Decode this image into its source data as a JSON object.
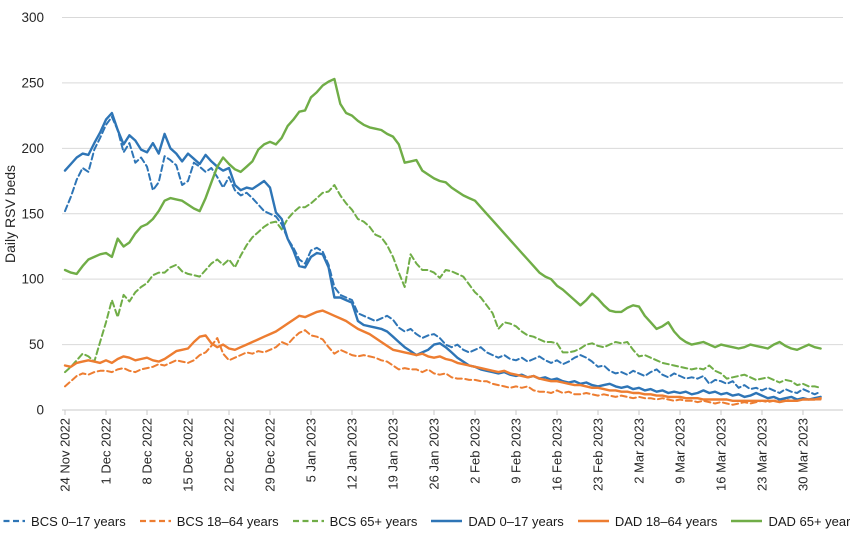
{
  "figure_name": "Daily RSV beds time series",
  "chart_data": {
    "type": "line",
    "title": "",
    "xlabel": "",
    "ylabel": "Daily RSV beds",
    "ylim": [
      0,
      300
    ],
    "yticks": [
      0,
      50,
      100,
      150,
      200,
      250,
      300
    ],
    "grid": "horizontal",
    "legend_position": "bottom",
    "tick_interval_days": 7,
    "x_tick_labels": [
      "24 Nov 2022",
      "1 Dec 2022",
      "8 Dec 2022",
      "15 Dec 2022",
      "22 Dec 2022",
      "29 Dec 2022",
      "5 Jan 2023",
      "12 Jan 2023",
      "19 Jan 2023",
      "26 Jan 2023",
      "2 Feb 2023",
      "9 Feb 2023",
      "16 Feb 2023",
      "23 Feb 2023",
      "2 Mar 2023",
      "9 Mar 2023",
      "16 Mar 2023",
      "23 Mar 2023",
      "30 Mar 2023"
    ],
    "colors": {
      "blue": "#2E75B6",
      "orange": "#ED7D31",
      "green": "#70AD47",
      "gridline": "#D9D9D9",
      "axis": "#C9C9C9",
      "text": "#262626"
    },
    "series": [
      {
        "name": "BCS 0–17 years",
        "style": "dashed",
        "color": "#2E75B6",
        "values": [
          152,
          163,
          176,
          185,
          182,
          199,
          208,
          218,
          224,
          214,
          197,
          204,
          189,
          193,
          186,
          168,
          174,
          194,
          191,
          187,
          172,
          175,
          189,
          186,
          182,
          185,
          178,
          170,
          178,
          168,
          164,
          166,
          162,
          157,
          152,
          150,
          148,
          142,
          131,
          124,
          115,
          112,
          122,
          124,
          121,
          111,
          94,
          88,
          86,
          84,
          74,
          72,
          70,
          68,
          70,
          72,
          69,
          63,
          60,
          62,
          58,
          55,
          57,
          58,
          55,
          50,
          48,
          50,
          46,
          44,
          46,
          48,
          44,
          42,
          40,
          42,
          39,
          38,
          40,
          37,
          39,
          41,
          38,
          36,
          38,
          35,
          37,
          40,
          42,
          40,
          37,
          33,
          34,
          30,
          28,
          29,
          27,
          30,
          28,
          26,
          29,
          31,
          27,
          25,
          28,
          26,
          24,
          25,
          24,
          26,
          20,
          23,
          22,
          20,
          22,
          17,
          19,
          16,
          17,
          15,
          17,
          15,
          13,
          16,
          14,
          13,
          16,
          14,
          12,
          14
        ]
      },
      {
        "name": "BCS 18–64 years",
        "style": "dashed",
        "color": "#ED7D31",
        "values": [
          18,
          22,
          26,
          28,
          27,
          29,
          30,
          30,
          29,
          31,
          32,
          30,
          29,
          31,
          32,
          33,
          35,
          34,
          36,
          38,
          37,
          36,
          38,
          42,
          44,
          49,
          55,
          43,
          38,
          40,
          42,
          44,
          43,
          45,
          44,
          46,
          48,
          52,
          50,
          55,
          59,
          61,
          57,
          56,
          54,
          48,
          43,
          46,
          44,
          42,
          41,
          42,
          41,
          40,
          38,
          37,
          34,
          31,
          32,
          31,
          31,
          29,
          31,
          28,
          27,
          28,
          25,
          24,
          24,
          23,
          23,
          22,
          22,
          20,
          19,
          18,
          17,
          18,
          17,
          18,
          15,
          14,
          14,
          13,
          15,
          13,
          14,
          12,
          12,
          13,
          12,
          11,
          12,
          11,
          10,
          11,
          10,
          9,
          10,
          9,
          9,
          8,
          9,
          8,
          7,
          8,
          7,
          7,
          6,
          7,
          6,
          5,
          6,
          5,
          4,
          5,
          6,
          5,
          6,
          7,
          6,
          7,
          8,
          8,
          7,
          8,
          8,
          8,
          8,
          8
        ]
      },
      {
        "name": "BCS 65+ years",
        "style": "dashed",
        "color": "#70AD47",
        "values": [
          29,
          33,
          38,
          43,
          41,
          37,
          52,
          67,
          84,
          71,
          88,
          83,
          90,
          94,
          97,
          103,
          105,
          105,
          109,
          111,
          106,
          104,
          103,
          102,
          107,
          112,
          115,
          111,
          115,
          109,
          118,
          126,
          132,
          136,
          140,
          143,
          144,
          138,
          146,
          151,
          155,
          155,
          158,
          162,
          166,
          167,
          172,
          164,
          158,
          153,
          146,
          144,
          140,
          134,
          132,
          126,
          117,
          105,
          94,
          119,
          112,
          107,
          107,
          105,
          101,
          107,
          106,
          104,
          102,
          96,
          90,
          86,
          80,
          74,
          62,
          67,
          66,
          64,
          60,
          57,
          56,
          54,
          52,
          52,
          51,
          44,
          44,
          45,
          47,
          50,
          51,
          49,
          48,
          50,
          52,
          51,
          52,
          46,
          41,
          42,
          40,
          38,
          36,
          35,
          34,
          33,
          32,
          31,
          32,
          31,
          34,
          30,
          28,
          24,
          25,
          26,
          27,
          25,
          23,
          24,
          25,
          23,
          21,
          23,
          22,
          19,
          20,
          18,
          18,
          17
        ]
      },
      {
        "name": "DAD 0–17 years",
        "style": "solid",
        "color": "#2E75B6",
        "values": [
          183,
          188,
          193,
          196,
          195,
          204,
          212,
          222,
          227,
          214,
          203,
          210,
          206,
          199,
          197,
          204,
          196,
          211,
          200,
          196,
          190,
          196,
          192,
          188,
          195,
          190,
          186,
          183,
          185,
          172,
          168,
          170,
          169,
          172,
          175,
          170,
          151,
          146,
          131,
          122,
          110,
          109,
          117,
          120,
          119,
          109,
          86,
          86,
          84,
          82,
          68,
          65,
          64,
          63,
          62,
          60,
          56,
          52,
          48,
          45,
          42,
          44,
          46,
          50,
          51,
          48,
          44,
          40,
          37,
          34,
          33,
          31,
          30,
          29,
          28,
          29,
          27,
          26,
          27,
          25,
          26,
          24,
          25,
          23,
          24,
          22,
          21,
          22,
          20,
          21,
          19,
          18,
          19,
          20,
          18,
          17,
          18,
          16,
          17,
          15,
          16,
          14,
          15,
          13,
          14,
          13,
          14,
          12,
          13,
          15,
          13,
          14,
          12,
          13,
          11,
          12,
          10,
          11,
          13,
          11,
          9,
          10,
          8,
          9,
          10,
          8,
          9,
          8,
          9,
          10
        ]
      },
      {
        "name": "DAD 18–64 years",
        "style": "solid",
        "color": "#ED7D31",
        "values": [
          34,
          33,
          36,
          37,
          38,
          37,
          36,
          38,
          36,
          39,
          41,
          40,
          38,
          39,
          40,
          38,
          37,
          39,
          42,
          45,
          46,
          47,
          52,
          56,
          57,
          51,
          48,
          50,
          47,
          46,
          48,
          50,
          52,
          54,
          56,
          58,
          60,
          63,
          66,
          69,
          72,
          71,
          73,
          75,
          76,
          74,
          72,
          70,
          68,
          65,
          62,
          60,
          58,
          55,
          52,
          49,
          46,
          45,
          44,
          43,
          42,
          43,
          41,
          40,
          41,
          39,
          38,
          36,
          35,
          34,
          33,
          32,
          31,
          30,
          29,
          30,
          28,
          27,
          26,
          25,
          26,
          24,
          23,
          22,
          22,
          21,
          20,
          19,
          19,
          18,
          17,
          17,
          16,
          15,
          15,
          14,
          14,
          13,
          13,
          12,
          12,
          11,
          11,
          10,
          10,
          10,
          9,
          9,
          9,
          8,
          8,
          8,
          8,
          8,
          7,
          7,
          7,
          7,
          7,
          7,
          7,
          7,
          6,
          7,
          7,
          7,
          8,
          8,
          8,
          9
        ]
      },
      {
        "name": "DAD 65+ years",
        "style": "solid",
        "color": "#70AD47",
        "values": [
          107,
          105,
          104,
          110,
          115,
          117,
          119,
          120,
          117,
          131,
          125,
          128,
          135,
          140,
          142,
          146,
          152,
          160,
          162,
          161,
          160,
          157,
          154,
          152,
          162,
          174,
          186,
          193,
          188,
          184,
          182,
          186,
          190,
          199,
          203,
          205,
          203,
          208,
          217,
          222,
          228,
          229,
          239,
          243,
          248,
          251,
          253,
          234,
          227,
          225,
          221,
          218,
          216,
          215,
          214,
          211,
          209,
          203,
          189,
          190,
          191,
          183,
          180,
          177,
          175,
          174,
          170,
          167,
          164,
          162,
          160,
          155,
          150,
          145,
          140,
          135,
          130,
          125,
          120,
          115,
          110,
          105,
          102,
          100,
          95,
          92,
          88,
          84,
          80,
          84,
          89,
          85,
          80,
          76,
          75,
          75,
          78,
          80,
          79,
          72,
          67,
          62,
          64,
          67,
          60,
          55,
          52,
          50,
          51,
          52,
          50,
          48,
          50,
          49,
          48,
          47,
          48,
          50,
          49,
          48,
          47,
          50,
          52,
          49,
          47,
          46,
          48,
          50,
          48,
          47
        ]
      }
    ]
  }
}
